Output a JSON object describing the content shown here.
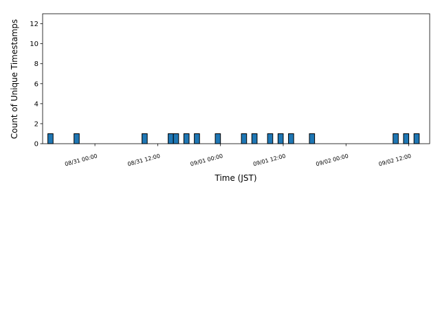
{
  "chart_data": {
    "type": "histogram",
    "xlabel": "Time (JST)",
    "ylabel": "Count of Unique Timestamps",
    "bins": [
      -9,
      -8,
      -7,
      -6,
      -5,
      -4,
      -3,
      -2,
      -1,
      0,
      1,
      2,
      3,
      4,
      5,
      6,
      7,
      8,
      9,
      10,
      11,
      12,
      13,
      14,
      15,
      16,
      17,
      18,
      19,
      20,
      21,
      22,
      23,
      24,
      25,
      26,
      27,
      28,
      29,
      30,
      31,
      32,
      33,
      34,
      35,
      36,
      37,
      38,
      39,
      40,
      41,
      42,
      43,
      44,
      45,
      46,
      47,
      48,
      49,
      50,
      51,
      52,
      53,
      54,
      55,
      56,
      57,
      58,
      59,
      60,
      61,
      62
    ],
    "values": [
      1,
      0,
      0,
      0,
      0,
      1,
      0,
      0,
      0,
      0,
      0,
      0,
      0,
      0,
      0,
      0,
      0,
      0,
      1,
      0,
      0,
      0,
      0,
      1,
      1,
      0,
      1,
      0,
      1,
      0,
      0,
      0,
      1,
      0,
      0,
      0,
      0,
      1,
      0,
      1,
      0,
      0,
      1,
      0,
      1,
      0,
      1,
      0,
      0,
      0,
      1,
      0,
      0,
      0,
      0,
      0,
      0,
      0,
      0,
      0,
      0,
      0,
      0,
      0,
      0,
      0,
      1,
      0,
      1,
      0,
      1
    ],
    "color": "#1f77b4",
    "xlim": [
      -10,
      64
    ],
    "xticks": [
      {
        "value": 0,
        "label": "08/31 00:00"
      },
      {
        "value": 12,
        "label": "08/31 12:00"
      },
      {
        "value": 24,
        "label": "09/01 00:00"
      },
      {
        "value": 36,
        "label": "09/01 12:00"
      },
      {
        "value": 48,
        "label": "09/02 00:00"
      },
      {
        "value": 60,
        "label": "09/02 12:00"
      }
    ],
    "ylim": [
      0,
      13
    ],
    "yticks": [
      0,
      2,
      4,
      6,
      8,
      10,
      12
    ]
  }
}
